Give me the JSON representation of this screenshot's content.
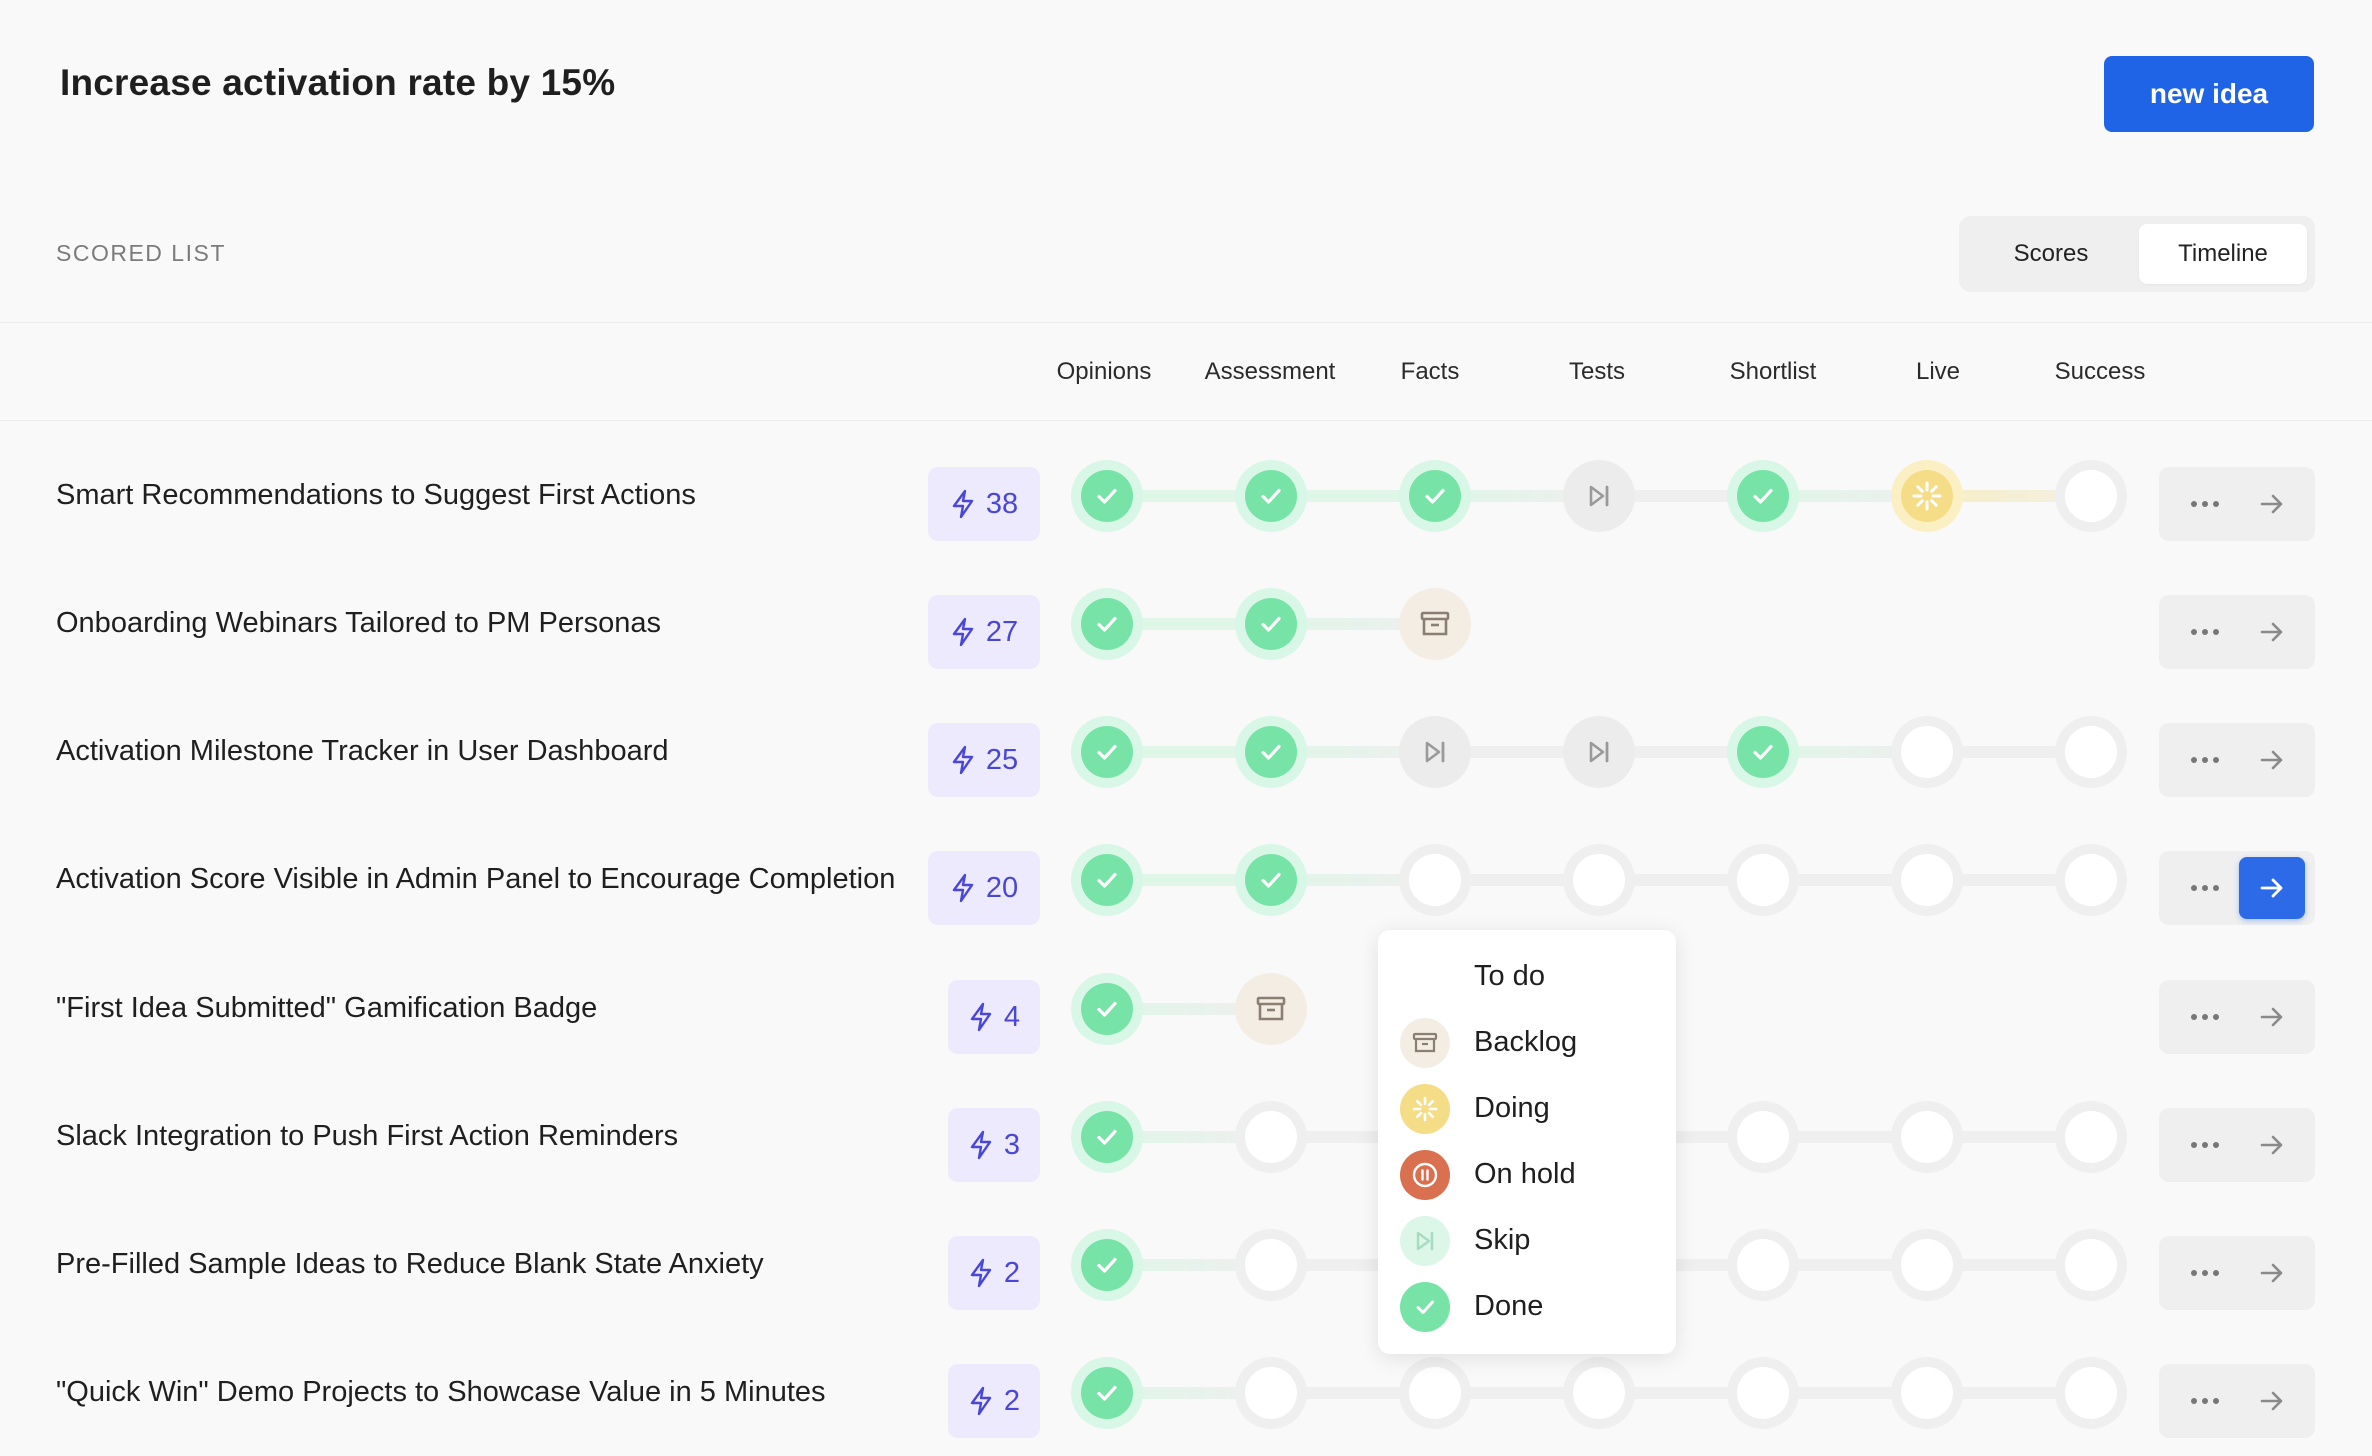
{
  "header": {
    "title": "Increase activation rate by 15%",
    "new_idea_label": "new idea"
  },
  "list": {
    "section_label": "SCORED LIST",
    "view_toggle": [
      {
        "label": "Scores",
        "active": false
      },
      {
        "label": "Timeline",
        "active": true
      }
    ],
    "stage_headers": [
      "Opinions",
      "Assessment",
      "Facts",
      "Tests",
      "Shortlist",
      "Live",
      "Success"
    ]
  },
  "rows": [
    {
      "title": "Smart Recommendations to Suggest First Actions",
      "score": "38",
      "stages": [
        "done",
        "done",
        "done",
        "skip",
        "done",
        "doing",
        "empty"
      ]
    },
    {
      "title": "Onboarding Webinars Tailored to PM Personas",
      "score": "27",
      "stages": [
        "done",
        "done",
        "backlog",
        "none",
        "none",
        "none",
        "none"
      ]
    },
    {
      "title": "Activation Milestone Tracker in User Dashboard",
      "score": "25",
      "stages": [
        "done",
        "done",
        "skip",
        "skip",
        "done",
        "empty",
        "empty"
      ]
    },
    {
      "title": "Activation Score Visible in Admin Panel to Encourage Completion",
      "score": "20",
      "stages": [
        "done",
        "done",
        "empty",
        "empty",
        "empty",
        "empty",
        "empty"
      ],
      "active": true
    },
    {
      "title": "\"First Idea Submitted\" Gamification Badge",
      "score": "4",
      "stages": [
        "done",
        "backlog",
        "none",
        "none",
        "none",
        "none",
        "none"
      ]
    },
    {
      "title": "Slack Integration to Push First Action Reminders",
      "score": "3",
      "stages": [
        "done",
        "empty",
        "empty",
        "empty",
        "empty",
        "empty",
        "empty"
      ]
    },
    {
      "title": "Pre-Filled Sample Ideas to Reduce Blank State Anxiety",
      "score": "2",
      "stages": [
        "done",
        "empty",
        "empty",
        "empty",
        "empty",
        "empty",
        "empty"
      ]
    },
    {
      "title": "\"Quick Win\" Demo Projects to Showcase Value in 5 Minutes",
      "score": "2",
      "stages": [
        "done",
        "empty",
        "empty",
        "empty",
        "empty",
        "empty",
        "empty"
      ]
    }
  ],
  "status_menu": {
    "options": [
      {
        "label": "To do",
        "icon": "none"
      },
      {
        "label": "Backlog",
        "icon": "archive-icon"
      },
      {
        "label": "Doing",
        "icon": "spinner-icon"
      },
      {
        "label": "On hold",
        "icon": "pause-icon"
      },
      {
        "label": "Skip",
        "icon": "skip-icon"
      },
      {
        "label": "Done",
        "icon": "check-icon"
      }
    ]
  },
  "colors": {
    "primary": "#1f63e6",
    "done": "#77e3a7",
    "doing": "#f5dc86",
    "on_hold": "#d9704f",
    "score_text": "#4a46d6",
    "score_bg": "#eceafc"
  }
}
